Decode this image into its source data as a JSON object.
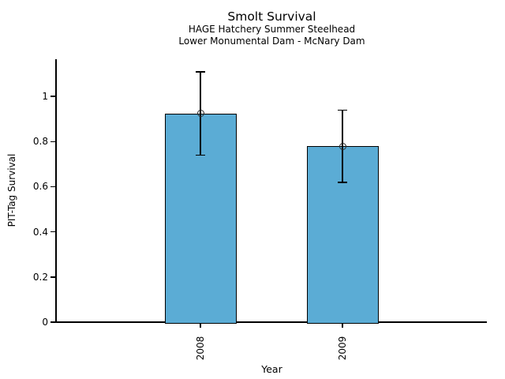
{
  "figure": {
    "title": "Smolt Survival",
    "subtitle_line1": "HAGE Hatchery Summer Steelhead",
    "subtitle_line2": "Lower Monumental Dam - McNary Dam"
  },
  "chart_data": {
    "type": "bar",
    "title": "Smolt Survival",
    "subtitle": [
      "HAGE Hatchery Summer Steelhead",
      "Lower Monumental Dam - McNary Dam"
    ],
    "xlabel": "Year",
    "ylabel": "PIT-Tag Survival",
    "categories": [
      "2008",
      "2009"
    ],
    "values": [
      0.925,
      0.78
    ],
    "error_high": [
      1.11,
      0.94
    ],
    "error_low": [
      0.74,
      0.62
    ],
    "yticks": [
      0,
      0.2,
      0.4,
      0.6,
      0.8,
      1
    ],
    "ytick_labels": [
      "0",
      "0.2",
      "0.4",
      "0.6",
      "0.8",
      "1"
    ],
    "ylim": [
      0,
      1.165
    ],
    "grid": false,
    "marker": "open-circle",
    "bar_color": "#5bacd5",
    "bar_edge_color": "#000000",
    "error_bar_color": "#000000",
    "axis_color": "#000000",
    "background_color": "#ffffff"
  }
}
